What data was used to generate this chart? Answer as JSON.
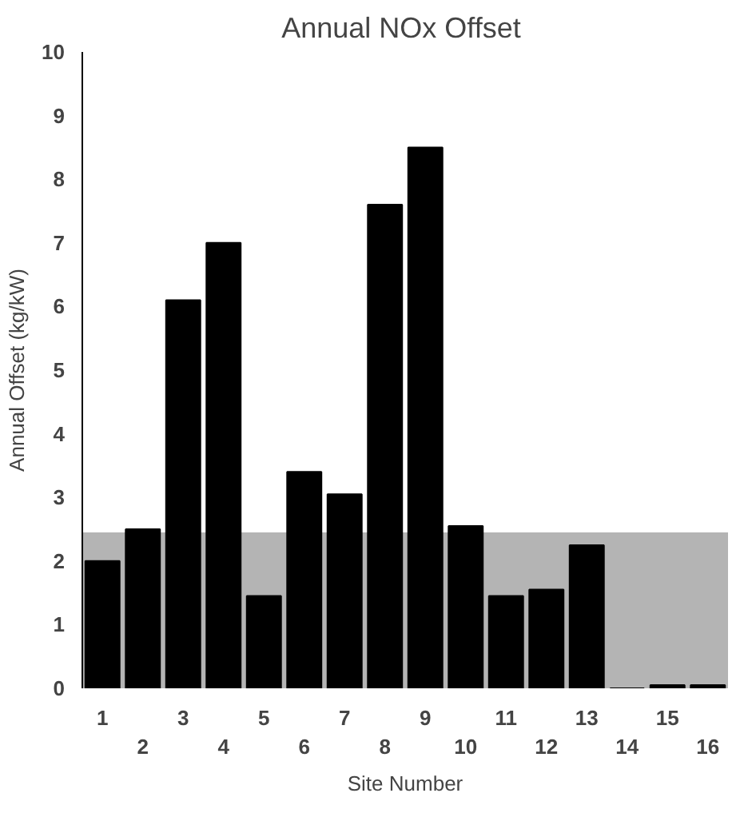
{
  "chart_data": {
    "type": "bar",
    "title": "Annual NOx  Offset",
    "xlabel": "Site Number",
    "ylabel": "Annual Offset (kg/kW)",
    "categories": [
      "1",
      "2",
      "3",
      "4",
      "5",
      "6",
      "7",
      "8",
      "9",
      "10",
      "11",
      "12",
      "13",
      "14",
      "15",
      "16"
    ],
    "values": [
      2.0,
      2.5,
      6.1,
      7.0,
      1.45,
      3.4,
      3.05,
      7.6,
      8.5,
      2.55,
      1.45,
      1.55,
      2.25,
      0,
      0.05,
      0.05
    ],
    "color": "#000000",
    "ylim": [
      0,
      10
    ],
    "yticks": [
      0,
      1,
      2,
      3,
      4,
      5,
      6,
      7,
      8,
      9,
      10
    ],
    "grid": false,
    "bands": [
      {
        "axis": "y",
        "from": 0,
        "to": 2.45,
        "color": "#b4b4b4"
      }
    ]
  }
}
